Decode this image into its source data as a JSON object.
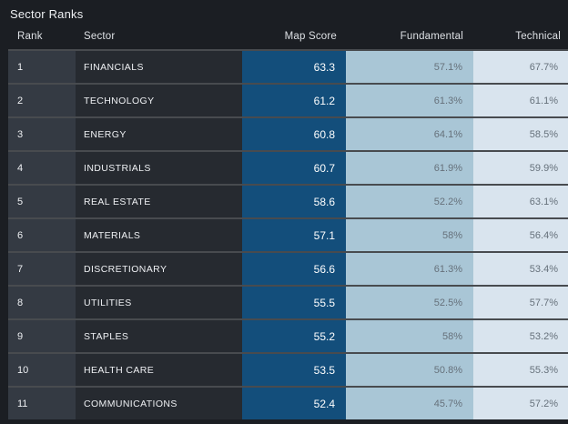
{
  "title": "Sector Ranks",
  "columns": [
    "Rank",
    "Sector",
    "Map Score",
    "Fundamental",
    "Technical"
  ],
  "rows": [
    {
      "rank": "1",
      "sector": "FINANCIALS",
      "map_score": "63.3",
      "fundamental": "57.1%",
      "technical": "67.7%"
    },
    {
      "rank": "2",
      "sector": "TECHNOLOGY",
      "map_score": "61.2",
      "fundamental": "61.3%",
      "technical": "61.1%"
    },
    {
      "rank": "3",
      "sector": "ENERGY",
      "map_score": "60.8",
      "fundamental": "64.1%",
      "technical": "58.5%"
    },
    {
      "rank": "4",
      "sector": "INDUSTRIALS",
      "map_score": "60.7",
      "fundamental": "61.9%",
      "technical": "59.9%"
    },
    {
      "rank": "5",
      "sector": "REAL ESTATE",
      "map_score": "58.6",
      "fundamental": "52.2%",
      "technical": "63.1%"
    },
    {
      "rank": "6",
      "sector": "MATERIALS",
      "map_score": "57.1",
      "fundamental": "58%",
      "technical": "56.4%"
    },
    {
      "rank": "7",
      "sector": "DISCRETIONARY",
      "map_score": "56.6",
      "fundamental": "61.3%",
      "technical": "53.4%"
    },
    {
      "rank": "8",
      "sector": "UTILITIES",
      "map_score": "55.5",
      "fundamental": "52.5%",
      "technical": "57.7%"
    },
    {
      "rank": "9",
      "sector": "STAPLES",
      "map_score": "55.2",
      "fundamental": "58%",
      "technical": "53.2%"
    },
    {
      "rank": "10",
      "sector": "HEALTH CARE",
      "map_score": "53.5",
      "fundamental": "50.8%",
      "technical": "55.3%"
    },
    {
      "rank": "11",
      "sector": "COMMUNICATIONS",
      "map_score": "52.4",
      "fundamental": "45.7%",
      "technical": "57.2%"
    }
  ],
  "colors": {
    "page_bg": "#1b1e23",
    "rank_bg": "#343a43",
    "sector_bg": "#262a30",
    "map_score_bg": "#134e7b",
    "fundamental_bg": "#a9c6d6",
    "technical_bg": "#d9e4ee",
    "separator": "rgba(255,255,255,0.2)",
    "light_text": "#eef0f3",
    "muted_text": "#66717b",
    "header_text": "#dde0e4"
  }
}
